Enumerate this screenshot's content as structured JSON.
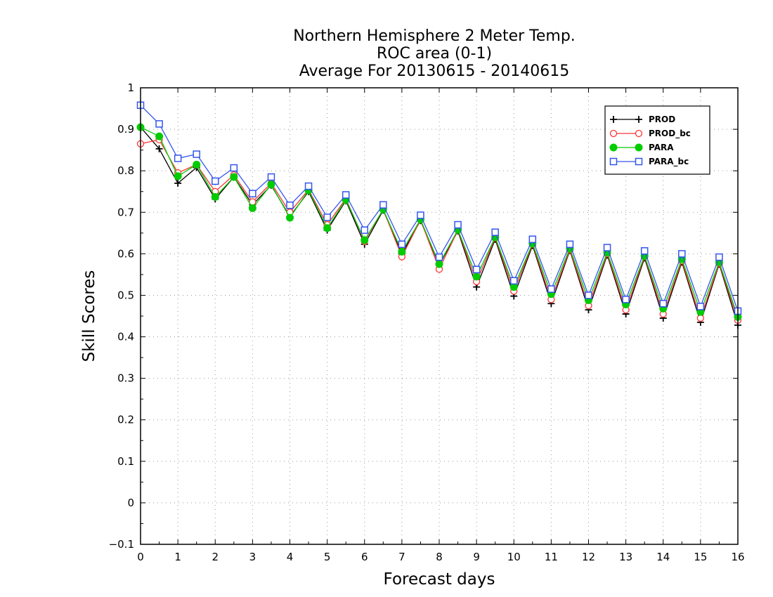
{
  "chart_data": {
    "type": "line",
    "title_lines": [
      "Northern Hemisphere 2 Meter Temp.",
      "ROC area (0-1)",
      "Average For 20130615 - 20140615"
    ],
    "xlabel": "Forecast days",
    "ylabel": "Skill Scores",
    "xlim": [
      0,
      16
    ],
    "ylim": [
      -0.1,
      1
    ],
    "x_ticks": [
      0,
      1,
      2,
      3,
      4,
      5,
      6,
      7,
      8,
      9,
      10,
      11,
      12,
      13,
      14,
      15,
      16
    ],
    "x_tick_labels": [
      "0",
      "1",
      "2",
      "3",
      "4",
      "5",
      "6",
      "7",
      "8",
      "9",
      "10",
      "11",
      "12",
      "13",
      "14",
      "15",
      "16"
    ],
    "y_ticks": [
      -0.1,
      0,
      0.1,
      0.2,
      0.3,
      0.4,
      0.5,
      0.6,
      0.7,
      0.8,
      0.9,
      1
    ],
    "y_tick_labels": [
      "−0.1",
      "0",
      "0.1",
      "0.2",
      "0.3",
      "0.4",
      "0.5",
      "0.6",
      "0.7",
      "0.8",
      "0.9",
      "1"
    ],
    "grid": true,
    "legend_position": "top-right",
    "x": [
      0,
      0.5,
      1,
      1.5,
      2,
      2.5,
      3,
      3.5,
      4,
      4.5,
      5,
      5.5,
      6,
      6.5,
      7,
      7.5,
      8,
      8.5,
      9,
      9.5,
      10,
      10.5,
      11,
      11.5,
      12,
      12.5,
      13,
      13.5,
      14,
      14.5,
      15,
      15.5,
      16
    ],
    "series": [
      {
        "name": "PROD",
        "color": "#000000",
        "marker": "plus",
        "values": [
          0.905,
          0.853,
          0.77,
          0.808,
          0.732,
          0.785,
          0.718,
          0.765,
          0.69,
          0.75,
          0.657,
          0.728,
          0.623,
          0.705,
          0.6,
          0.68,
          0.573,
          0.655,
          0.52,
          0.635,
          0.498,
          0.62,
          0.48,
          0.608,
          0.465,
          0.597,
          0.455,
          0.59,
          0.445,
          0.58,
          0.435,
          0.575,
          0.428
        ]
      },
      {
        "name": "PROD_bc",
        "color": "#ff3333",
        "marker": "circle-open",
        "values": [
          0.865,
          0.875,
          0.795,
          0.815,
          0.75,
          0.79,
          0.725,
          0.77,
          0.7,
          0.755,
          0.67,
          0.733,
          0.63,
          0.707,
          0.593,
          0.682,
          0.563,
          0.657,
          0.533,
          0.638,
          0.51,
          0.623,
          0.49,
          0.61,
          0.475,
          0.6,
          0.465,
          0.593,
          0.455,
          0.583,
          0.445,
          0.577,
          0.44
        ]
      },
      {
        "name": "PARA",
        "color": "#00cc00",
        "marker": "circle-filled",
        "values": [
          0.905,
          0.883,
          0.787,
          0.815,
          0.737,
          0.785,
          0.71,
          0.767,
          0.687,
          0.753,
          0.662,
          0.73,
          0.633,
          0.707,
          0.605,
          0.683,
          0.575,
          0.658,
          0.545,
          0.64,
          0.52,
          0.625,
          0.503,
          0.613,
          0.488,
          0.603,
          0.478,
          0.595,
          0.468,
          0.587,
          0.46,
          0.58,
          0.448
        ]
      },
      {
        "name": "PARA_bc",
        "color": "#3355ee",
        "marker": "square-open",
        "values": [
          0.958,
          0.913,
          0.83,
          0.84,
          0.775,
          0.807,
          0.745,
          0.785,
          0.717,
          0.763,
          0.688,
          0.742,
          0.657,
          0.718,
          0.623,
          0.693,
          0.592,
          0.67,
          0.562,
          0.652,
          0.535,
          0.635,
          0.515,
          0.623,
          0.5,
          0.615,
          0.49,
          0.607,
          0.48,
          0.6,
          0.473,
          0.592,
          0.462
        ]
      }
    ]
  }
}
